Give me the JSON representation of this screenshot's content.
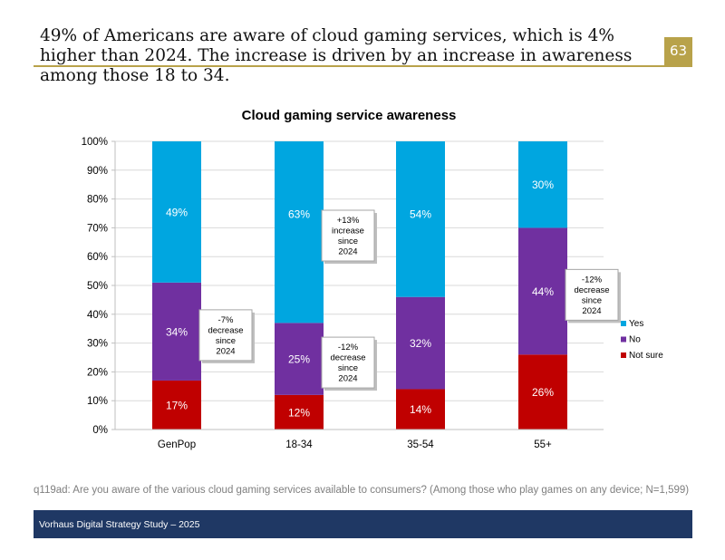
{
  "header": {
    "headline": "49% of Americans are aware of cloud gaming services, which is 4% higher than 2024. The increase is driven by an increase in awareness among those 18 to 34.",
    "page_number": "63"
  },
  "colors": {
    "yes": "#00a6e0",
    "no": "#7030a0",
    "not_sure": "#c00000",
    "accent": "#b8a24a",
    "footer_bg": "#1f3864"
  },
  "chart_data": {
    "type": "bar",
    "stacked": true,
    "title": "Cloud gaming service awareness",
    "categories": [
      "GenPop",
      "18-34",
      "35-54",
      "55+"
    ],
    "series": [
      {
        "name": "Not sure",
        "values": [
          17,
          12,
          14,
          26
        ],
        "labels": [
          "17%",
          "12%",
          "14%",
          "26%"
        ]
      },
      {
        "name": "No",
        "values": [
          34,
          25,
          32,
          44
        ],
        "labels": [
          "34%",
          "25%",
          "32%",
          "44%"
        ]
      },
      {
        "name": "Yes",
        "values": [
          49,
          63,
          54,
          30
        ],
        "labels": [
          "49%",
          "63%",
          "54%",
          "30%"
        ]
      }
    ],
    "legend": [
      "Yes",
      "No",
      "Not sure"
    ],
    "legend_position": "right",
    "ylim": [
      0,
      100
    ],
    "yticks": [
      0,
      10,
      20,
      30,
      40,
      50,
      60,
      70,
      80,
      90,
      100
    ],
    "ytick_labels": [
      "0%",
      "10%",
      "20%",
      "30%",
      "40%",
      "50%",
      "60%",
      "70%",
      "80%",
      "90%",
      "100%"
    ],
    "grid": true,
    "annotations": [
      {
        "text": [
          "-7%",
          "decrease",
          "since",
          "2024"
        ],
        "category": "GenPop",
        "series": "No"
      },
      {
        "text": [
          "+13%",
          "increase",
          "since",
          "2024"
        ],
        "category": "18-34",
        "series": "Yes"
      },
      {
        "text": [
          "-12%",
          "decrease",
          "since",
          "2024"
        ],
        "category": "18-34",
        "series": "No"
      },
      {
        "text": [
          "-12%",
          "decrease",
          "since",
          "2024"
        ],
        "category": "55+",
        "series": "No"
      }
    ]
  },
  "footnote": "q119ad: Are you aware of the various cloud gaming services available to consumers? (Among those who play games on any device; N=1,599)",
  "footer": {
    "text": "Vorhaus Digital Strategy Study – 2025"
  }
}
